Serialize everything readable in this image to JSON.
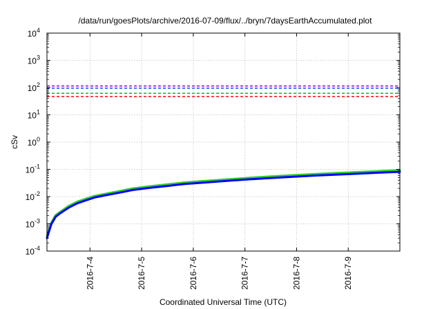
{
  "chart_data": {
    "type": "line",
    "title": "/data/run/goesPlots/archive/2016-07-09/flux/../bryn/7daysEarthAccumulated.plot",
    "xlabel": "Coordinated Universal Time (UTC)",
    "ylabel": "cSv",
    "y_scale": "log",
    "ylim": [
      0.0001,
      10000
    ],
    "y_ticks": [
      {
        "value": 0.0001,
        "mant": "10",
        "exp": "-4"
      },
      {
        "value": 0.001,
        "mant": "10",
        "exp": "-3"
      },
      {
        "value": 0.01,
        "mant": "10",
        "exp": "-2"
      },
      {
        "value": 0.1,
        "mant": "10",
        "exp": "-1"
      },
      {
        "value": 1,
        "mant": "10",
        "exp": "0"
      },
      {
        "value": 10,
        "mant": "10",
        "exp": "1"
      },
      {
        "value": 100,
        "mant": "10",
        "exp": "2"
      },
      {
        "value": 1000,
        "mant": "10",
        "exp": "3"
      },
      {
        "value": 10000,
        "mant": "10",
        "exp": "4"
      }
    ],
    "xlim": [
      "2016-07-03 04:00",
      "2016-07-09 24:00"
    ],
    "x_ticks": [
      {
        "value": "2016-07-04 00:00",
        "label": "2016-7-4"
      },
      {
        "value": "2016-07-05 00:00",
        "label": "2016-7-5"
      },
      {
        "value": "2016-07-06 00:00",
        "label": "2016-7-6"
      },
      {
        "value": "2016-07-07 00:00",
        "label": "2016-7-7"
      },
      {
        "value": "2016-07-08 00:00",
        "label": "2016-7-8"
      },
      {
        "value": "2016-07-09 00:00",
        "label": "2016-7-9"
      }
    ],
    "grid": true,
    "reference_lines": [
      {
        "value": 115,
        "color": "#9400d3",
        "style": "dashed"
      },
      {
        "value": 95,
        "color": "#1e40ff",
        "style": "dashed"
      },
      {
        "value": 62,
        "color": "#00c000",
        "style": "dashed"
      },
      {
        "value": 47,
        "color": "#ff0000",
        "style": "dashed"
      }
    ],
    "series": [
      {
        "color": "#32cd32",
        "x": [
          "2016-07-03 04:00",
          "2016-07-03 06:00",
          "2016-07-03 08:00",
          "2016-07-03 10:00",
          "2016-07-03 14:00",
          "2016-07-03 18:00",
          "2016-07-03 22:00",
          "2016-07-04 02:00",
          "2016-07-04 08:00",
          "2016-07-04 14:00",
          "2016-07-04 20:00",
          "2016-07-05 04:00",
          "2016-07-05 12:00",
          "2016-07-05 20:00",
          "2016-07-06 06:00",
          "2016-07-06 16:00",
          "2016-07-07 02:00",
          "2016-07-07 12:00",
          "2016-07-07 22:00",
          "2016-07-08 08:00",
          "2016-07-08 18:00",
          "2016-07-09 04:00",
          "2016-07-09 14:00",
          "2016-07-09 24:00"
        ],
        "y": [
          0.00035,
          0.0011,
          0.0021,
          0.0027,
          0.0045,
          0.0065,
          0.0083,
          0.0105,
          0.013,
          0.016,
          0.02,
          0.024,
          0.028,
          0.033,
          0.038,
          0.043,
          0.049,
          0.055,
          0.061,
          0.067,
          0.073,
          0.079,
          0.086,
          0.094
        ]
      },
      {
        "color": "#0000ff",
        "x": [
          "2016-07-03 04:00",
          "2016-07-03 06:00",
          "2016-07-03 08:00",
          "2016-07-03 10:00",
          "2016-07-03 14:00",
          "2016-07-03 18:00",
          "2016-07-03 22:00",
          "2016-07-04 02:00",
          "2016-07-04 08:00",
          "2016-07-04 14:00",
          "2016-07-04 20:00",
          "2016-07-05 04:00",
          "2016-07-05 12:00",
          "2016-07-05 20:00",
          "2016-07-06 06:00",
          "2016-07-06 16:00",
          "2016-07-07 02:00",
          "2016-07-07 12:00",
          "2016-07-07 22:00",
          "2016-07-08 08:00",
          "2016-07-08 18:00",
          "2016-07-09 04:00",
          "2016-07-09 14:00",
          "2016-07-09 24:00"
        ],
        "y": [
          0.0003,
          0.00095,
          0.0018,
          0.0024,
          0.0039,
          0.0056,
          0.0072,
          0.0092,
          0.0115,
          0.014,
          0.0175,
          0.021,
          0.0245,
          0.029,
          0.033,
          0.038,
          0.043,
          0.048,
          0.053,
          0.059,
          0.064,
          0.069,
          0.075,
          0.081
        ]
      }
    ]
  }
}
